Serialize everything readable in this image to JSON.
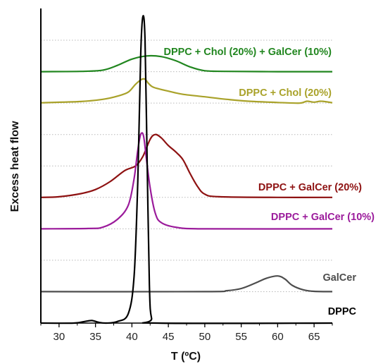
{
  "chart_data": {
    "type": "line",
    "xlabel": "T (ºC)",
    "ylabel": "Excess heat flow",
    "xlim": [
      27.5,
      67.5
    ],
    "x_ticks": [
      30,
      35,
      40,
      45,
      50,
      55,
      60,
      65
    ],
    "ylim": [
      0,
      10
    ],
    "grid": "horizontal dotted",
    "legend": "inline labels at right",
    "series": [
      {
        "name": "DPPC + Chol (20%) + GalCer (10%)",
        "color": "#21861F",
        "points": [
          [
            27.5,
            8.0
          ],
          [
            33,
            8.01
          ],
          [
            36,
            8.05
          ],
          [
            38,
            8.2
          ],
          [
            40,
            8.4
          ],
          [
            42,
            8.5
          ],
          [
            44,
            8.48
          ],
          [
            46,
            8.35
          ],
          [
            48,
            8.15
          ],
          [
            50,
            8.03
          ],
          [
            53,
            8.01
          ],
          [
            60,
            8.0
          ],
          [
            67.5,
            8.0
          ]
        ]
      },
      {
        "name": "DPPC + Chol (20%)",
        "color": "#A9A22A",
        "points": [
          [
            27.5,
            7.01
          ],
          [
            33,
            7.05
          ],
          [
            36,
            7.12
          ],
          [
            38,
            7.22
          ],
          [
            39.5,
            7.35
          ],
          [
            40.5,
            7.6
          ],
          [
            41.3,
            7.75
          ],
          [
            41.8,
            7.76
          ],
          [
            42.3,
            7.62
          ],
          [
            43,
            7.5
          ],
          [
            45,
            7.38
          ],
          [
            47,
            7.28
          ],
          [
            50,
            7.2
          ],
          [
            53,
            7.12
          ],
          [
            56,
            7.06
          ],
          [
            60,
            7.02
          ],
          [
            63,
            7.0
          ],
          [
            64,
            7.06
          ],
          [
            65,
            7.03
          ],
          [
            66,
            7.06
          ],
          [
            67.5,
            7.01
          ]
        ]
      },
      {
        "name": "DPPC + GalCer (20%)",
        "color": "#8E1212",
        "points": [
          [
            27.5,
            4.0
          ],
          [
            30,
            4.02
          ],
          [
            33,
            4.12
          ],
          [
            35,
            4.25
          ],
          [
            37,
            4.5
          ],
          [
            39,
            4.85
          ],
          [
            40.5,
            5.0
          ],
          [
            41.5,
            5.3
          ],
          [
            42.5,
            5.85
          ],
          [
            43.2,
            6.0
          ],
          [
            44,
            5.9
          ],
          [
            45,
            5.65
          ],
          [
            46,
            5.45
          ],
          [
            47,
            5.2
          ],
          [
            48,
            4.75
          ],
          [
            49,
            4.35
          ],
          [
            50,
            4.1
          ],
          [
            52,
            4.02
          ],
          [
            60,
            4.0
          ],
          [
            67.5,
            4.0
          ]
        ]
      },
      {
        "name": "DPPC + GalCer (10%)",
        "color": "#9B1B9B",
        "points": [
          [
            27.5,
            3.0
          ],
          [
            34,
            3.01
          ],
          [
            36,
            3.05
          ],
          [
            38,
            3.3
          ],
          [
            39.5,
            3.75
          ],
          [
            40.3,
            4.6
          ],
          [
            40.8,
            5.5
          ],
          [
            41.2,
            6.0
          ],
          [
            41.6,
            5.95
          ],
          [
            42.0,
            5.2
          ],
          [
            42.5,
            4.3
          ],
          [
            43.2,
            3.5
          ],
          [
            44,
            3.2
          ],
          [
            46,
            3.05
          ],
          [
            50,
            3.0
          ],
          [
            67.5,
            3.0
          ]
        ]
      },
      {
        "name": "GalCer",
        "color": "#4D4D4D",
        "points": [
          [
            27.5,
            1.0
          ],
          [
            50,
            1.0
          ],
          [
            53,
            1.03
          ],
          [
            55,
            1.1
          ],
          [
            57,
            1.28
          ],
          [
            58.5,
            1.43
          ],
          [
            60,
            1.5
          ],
          [
            61,
            1.4
          ],
          [
            62,
            1.2
          ],
          [
            63.5,
            1.06
          ],
          [
            65,
            1.01
          ],
          [
            67.5,
            1.0
          ]
        ]
      },
      {
        "name": "DPPC",
        "color": "#000000",
        "points": [
          [
            27.5,
            0.0
          ],
          [
            32,
            0.0
          ],
          [
            33.5,
            0.05
          ],
          [
            34.5,
            0.08
          ],
          [
            35.5,
            0.02
          ],
          [
            36.5,
            0.0
          ],
          [
            38,
            0.05
          ],
          [
            39.5,
            0.3
          ],
          [
            40.3,
            1.5
          ],
          [
            40.8,
            4.5
          ],
          [
            41.2,
            8.5
          ],
          [
            41.5,
            9.75
          ],
          [
            41.8,
            9.0
          ],
          [
            42.1,
            5.0
          ],
          [
            42.4,
            1.2
          ],
          [
            42.7,
            0.15
          ],
          [
            43.5,
            0.0
          ],
          [
            67.5,
            0.0
          ]
        ]
      }
    ],
    "labels": [
      "DPPC + Chol (20%) + GalCer (10%)",
      "DPPC + Chol (20%)",
      "DPPC + GalCer (20%)",
      "DPPC + GalCer (10%)",
      "GalCer",
      "DPPC"
    ]
  }
}
